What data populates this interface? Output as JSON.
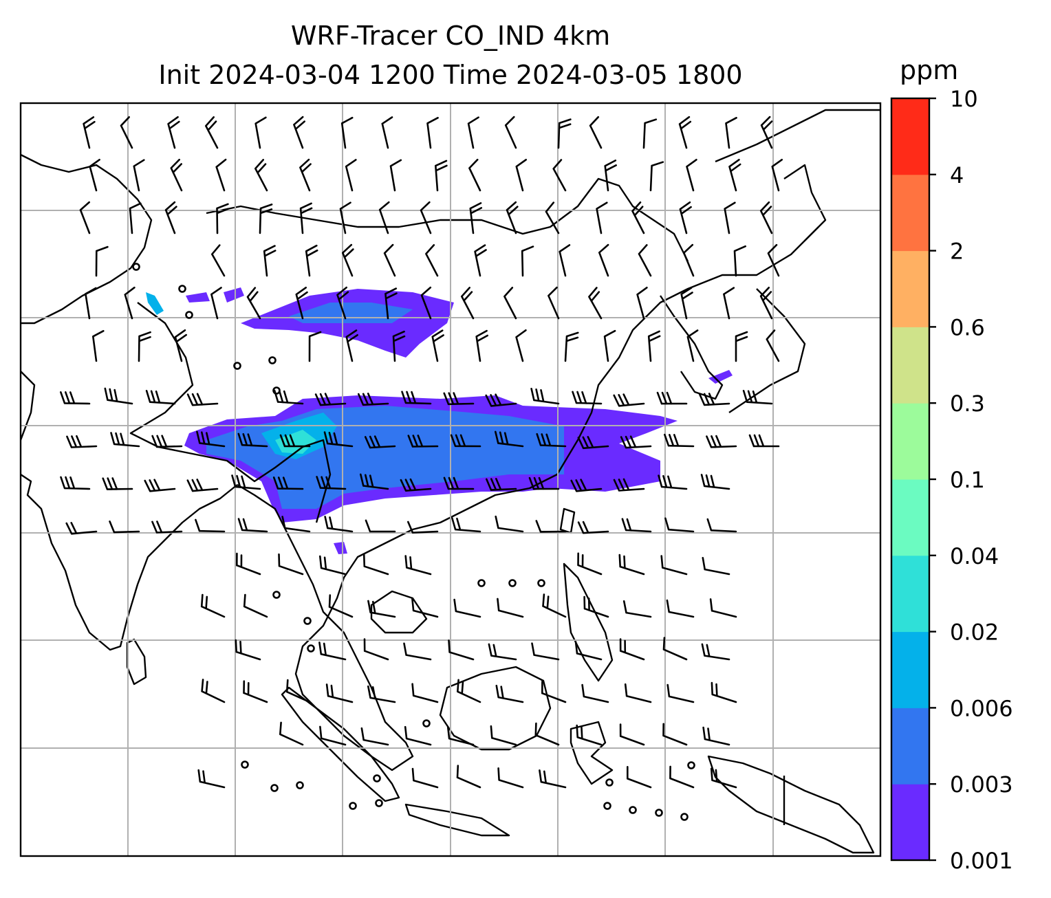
{
  "title": {
    "line1": "WRF-Tracer CO_IND 4km",
    "line2": "Init 2024-03-04 1200 Time 2024-03-05 1800"
  },
  "colorbar": {
    "unit": "ppm",
    "levels": [
      "0.001",
      "0.003",
      "0.006",
      "0.02",
      "0.04",
      "0.1",
      "0.3",
      "0.6",
      "2",
      "4",
      "10"
    ],
    "colors": [
      "#6a2bff",
      "#3276f0",
      "#04b1ea",
      "#2fe0d8",
      "#6bfbc1",
      "#9cfb9b",
      "#cfe38a",
      "#ffb062",
      "#ff7340",
      "#ff2b18"
    ]
  },
  "map": {
    "field": "CO_IND tracer concentration with wind barbs",
    "grid": true
  }
}
